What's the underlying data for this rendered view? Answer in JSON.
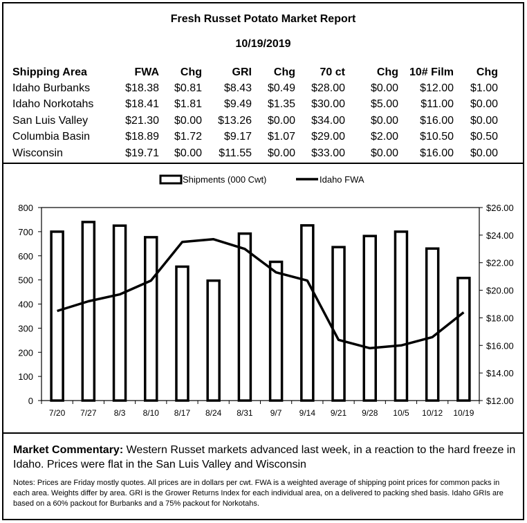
{
  "report": {
    "title": "Fresh Russet Potato Market Report",
    "date": "10/19/2019"
  },
  "price_table": {
    "headers": [
      "Shipping Area",
      "FWA",
      "Chg",
      "GRI",
      "Chg",
      "70 ct",
      "Chg",
      "10# Film",
      "Chg"
    ],
    "rows": [
      [
        "Idaho Burbanks",
        "$18.38",
        "$0.81",
        "$8.43",
        "$0.49",
        "$28.00",
        "$0.00",
        "$12.00",
        "$1.00"
      ],
      [
        "Idaho Norkotahs",
        "$18.41",
        "$1.81",
        "$9.49",
        "$1.35",
        "$30.00",
        "$5.00",
        "$11.00",
        "$0.00"
      ],
      [
        "San Luis Valley",
        "$21.30",
        "$0.00",
        "$13.26",
        "$0.00",
        "$34.00",
        "$0.00",
        "$16.00",
        "$0.00"
      ],
      [
        "Columbia Basin",
        "$18.89",
        "$1.72",
        "$9.17",
        "$1.07",
        "$29.00",
        "$2.00",
        "$10.50",
        "$0.50"
      ],
      [
        "Wisconsin",
        "$19.71",
        "$0.00",
        "$11.55",
        "$0.00",
        "$33.00",
        "$0.00",
        "$16.00",
        "$0.00"
      ]
    ]
  },
  "chart_data": {
    "type": "bar",
    "categories": [
      "7/20",
      "7/27",
      "8/3",
      "8/10",
      "8/17",
      "8/24",
      "8/31",
      "9/7",
      "9/14",
      "9/21",
      "9/28",
      "10/5",
      "10/12",
      "10/19"
    ],
    "series": [
      {
        "name": "Shipments (000 Cwt)",
        "type": "bar",
        "axis": "left",
        "values": [
          700,
          740,
          725,
          677,
          555,
          497,
          692,
          575,
          726,
          636,
          682,
          700,
          630,
          508
        ]
      },
      {
        "name": "Idaho FWA",
        "type": "line",
        "axis": "right",
        "values": [
          18.5,
          19.2,
          19.7,
          20.7,
          23.5,
          23.7,
          23.0,
          21.3,
          20.7,
          16.4,
          15.8,
          16.0,
          16.6,
          18.4
        ]
      }
    ],
    "y_left": {
      "range": [
        0,
        800
      ],
      "ticks": [
        "0",
        "100",
        "200",
        "300",
        "400",
        "500",
        "600",
        "700",
        "800"
      ]
    },
    "y_right": {
      "range": [
        12,
        26
      ],
      "ticks": [
        "$12.00",
        "$14.00",
        "$16.00",
        "$18.00",
        "$20.00",
        "$22.00",
        "$24.00",
        "$26.00"
      ]
    },
    "legend_position": "top-center",
    "grid": false
  },
  "commentary": {
    "label": "Market Commentary:",
    "text": " Western Russet markets advanced last week, in a reaction to the hard freeze in Idaho. Prices were flat in the San Luis Valley and Wisconsin"
  },
  "notes": "Notes: Prices are Friday mostly quotes. All prices are in dollars per cwt. FWA is a weighted average of shipping point prices for common packs in each area. Weights differ by area. GRI is the Grower Returns Index for each individual area, on a delivered to packing shed basis. Idaho GRIs are based on a 60% packout for Burbanks and a 75% packout for Norkotahs."
}
